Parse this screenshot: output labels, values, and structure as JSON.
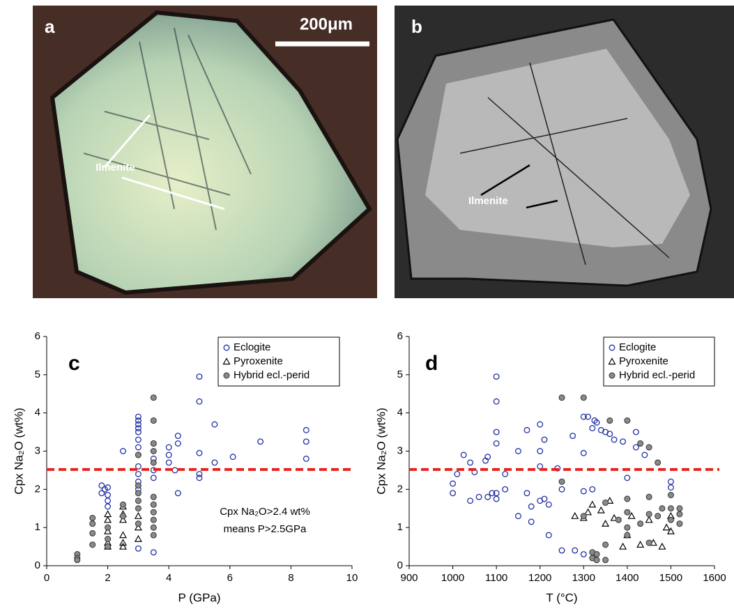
{
  "images": [
    {
      "label": "a",
      "scale_bar": "200μm",
      "annotation": "Ilmenite"
    },
    {
      "label": "b",
      "annotation": "Ilmenite"
    }
  ],
  "chart_data": [
    {
      "type": "scatter",
      "panel": "c",
      "xlabel": "P (GPa)",
      "ylabel": "Cpx Na₂O (wt%)",
      "annotation": [
        "Cpx Na₂O>2.4 wt%",
        "means P>2.5GPa"
      ],
      "xlim": [
        0,
        10
      ],
      "xticks": [
        0,
        2,
        4,
        6,
        8,
        10
      ],
      "ylim": [
        0,
        6
      ],
      "yticks": [
        0,
        1,
        2,
        3,
        4,
        5,
        6
      ],
      "reference_line": {
        "value": 2.52,
        "color": "#e8211c"
      },
      "series": [
        {
          "name": "Eclogite",
          "marker": "circle-open",
          "color": "#1f2fa0",
          "x": [
            1.8,
            1.8,
            1.9,
            2,
            2,
            2,
            2,
            2.5,
            3,
            3,
            3,
            3,
            3,
            3,
            3,
            3,
            3,
            3,
            3,
            3,
            3,
            3.5,
            3.5,
            3.5,
            3.5,
            3.5,
            4,
            4,
            4,
            4.2,
            4.3,
            4.3,
            4.3,
            5,
            5,
            5,
            5,
            5,
            5.5,
            5.5,
            6.1,
            7,
            8.5,
            8.5,
            8.5
          ],
          "values": [
            2.1,
            1.9,
            2.0,
            2.05,
            1.85,
            1.7,
            1.55,
            3.0,
            3.9,
            3.8,
            3.7,
            3.6,
            3.5,
            3.3,
            3.1,
            2.9,
            2.6,
            2.4,
            2.2,
            2.0,
            0.45,
            0.35,
            3.2,
            2.8,
            2.5,
            2.3,
            3.1,
            2.9,
            2.7,
            2.5,
            3.4,
            3.2,
            1.9,
            4.95,
            4.3,
            2.95,
            2.4,
            2.3,
            3.7,
            2.7,
            2.85,
            3.25,
            3.55,
            3.25,
            2.8
          ]
        },
        {
          "name": "Pyroxenite",
          "marker": "triangle-open",
          "color": "#000000",
          "x": [
            2,
            2,
            2,
            2,
            2,
            2.5,
            2.5,
            2.5,
            2.5,
            2.5,
            2.5,
            3,
            3,
            3
          ],
          "values": [
            1.35,
            1.2,
            0.9,
            0.5,
            0.6,
            1.55,
            1.35,
            1.2,
            0.8,
            0.6,
            0.5,
            1.3,
            1.0,
            0.7
          ]
        },
        {
          "name": "Hybrid ecl.-perid",
          "marker": "circle-filled",
          "color": "#8a8a8a",
          "x": [
            1,
            1,
            1,
            1.5,
            1.5,
            1.5,
            1.5,
            2,
            2,
            2,
            2.5,
            2.5,
            3,
            3,
            3,
            3,
            3,
            3,
            3.5,
            3.5,
            3.5,
            3.5,
            3.5,
            3.5,
            3.5,
            3.5,
            3.5,
            3.5,
            3.5
          ],
          "values": [
            0.3,
            0.2,
            0.15,
            1.25,
            1.1,
            0.85,
            0.55,
            1.0,
            0.7,
            0.5,
            1.6,
            1.3,
            1.9,
            1.7,
            1.5,
            1.1,
            2.9,
            2.1,
            4.4,
            3.8,
            3.2,
            3.0,
            2.7,
            1.8,
            1.6,
            1.4,
            1.2,
            1.0,
            0.8
          ]
        }
      ]
    },
    {
      "type": "scatter",
      "panel": "d",
      "xlabel": "T (°C)",
      "ylabel": "Cpx Na₂O (wt%)",
      "xlim": [
        900,
        1600
      ],
      "xticks": [
        900,
        1000,
        1100,
        1200,
        1300,
        1400,
        1500,
        1600
      ],
      "ylim": [
        0,
        6
      ],
      "yticks": [
        0,
        1,
        2,
        3,
        4,
        5,
        6
      ],
      "reference_line": {
        "value": 2.52,
        "color": "#e8211c"
      },
      "series": [
        {
          "name": "Eclogite",
          "marker": "circle-open",
          "color": "#1f2fa0",
          "x": [
            1000,
            1000,
            1010,
            1025,
            1040,
            1040,
            1050,
            1060,
            1075,
            1080,
            1080,
            1090,
            1100,
            1100,
            1100,
            1100,
            1100,
            1100,
            1120,
            1120,
            1150,
            1150,
            1170,
            1170,
            1180,
            1180,
            1200,
            1200,
            1200,
            1200,
            1210,
            1210,
            1220,
            1220,
            1240,
            1250,
            1250,
            1275,
            1280,
            1300,
            1300,
            1300,
            1300,
            1310,
            1320,
            1320,
            1325,
            1330,
            1340,
            1350,
            1360,
            1370,
            1390,
            1400,
            1420,
            1420,
            1440,
            1500,
            1500
          ],
          "values": [
            2.15,
            1.9,
            2.4,
            2.9,
            2.7,
            1.7,
            2.45,
            1.8,
            2.75,
            1.8,
            2.85,
            1.9,
            4.95,
            4.3,
            3.5,
            3.2,
            1.9,
            1.75,
            2.4,
            2.0,
            3.0,
            1.3,
            3.55,
            1.9,
            1.55,
            1.15,
            3.7,
            3.0,
            2.6,
            1.7,
            3.3,
            1.75,
            0.8,
            1.6,
            2.55,
            2.0,
            0.4,
            3.4,
            0.4,
            3.9,
            2.95,
            1.95,
            0.3,
            3.9,
            3.6,
            2.0,
            3.8,
            3.75,
            3.55,
            3.5,
            3.45,
            3.3,
            3.25,
            2.3,
            3.5,
            3.1,
            2.9,
            2.2,
            2.05
          ]
        },
        {
          "name": "Pyroxenite",
          "marker": "triangle-open",
          "color": "#000000",
          "x": [
            1280,
            1300,
            1310,
            1320,
            1340,
            1350,
            1360,
            1370,
            1390,
            1400,
            1410,
            1430,
            1450,
            1460,
            1480,
            1490,
            1500,
            1500
          ],
          "values": [
            1.3,
            1.25,
            1.4,
            1.6,
            1.45,
            1.1,
            1.7,
            1.25,
            0.5,
            0.8,
            1.3,
            0.55,
            1.2,
            0.6,
            0.5,
            1.0,
            0.9,
            1.3
          ]
        },
        {
          "name": "Hybrid ecl.-perid",
          "marker": "circle-filled",
          "color": "#8a8a8a",
          "x": [
            1250,
            1250,
            1300,
            1300,
            1320,
            1320,
            1330,
            1330,
            1350,
            1350,
            1350,
            1360,
            1380,
            1400,
            1400,
            1400,
            1400,
            1400,
            1430,
            1430,
            1450,
            1450,
            1450,
            1450,
            1470,
            1470,
            1480,
            1500,
            1500,
            1500,
            1520,
            1520,
            1520
          ],
          "values": [
            4.4,
            2.2,
            4.4,
            1.3,
            0.35,
            0.2,
            0.15,
            0.3,
            1.65,
            0.55,
            0.15,
            3.8,
            1.2,
            3.8,
            1.75,
            1.4,
            1.0,
            0.8,
            3.2,
            1.1,
            3.1,
            1.8,
            1.35,
            0.6,
            2.7,
            1.3,
            1.5,
            1.85,
            1.5,
            1.2,
            1.5,
            1.35,
            1.1
          ]
        }
      ]
    }
  ]
}
